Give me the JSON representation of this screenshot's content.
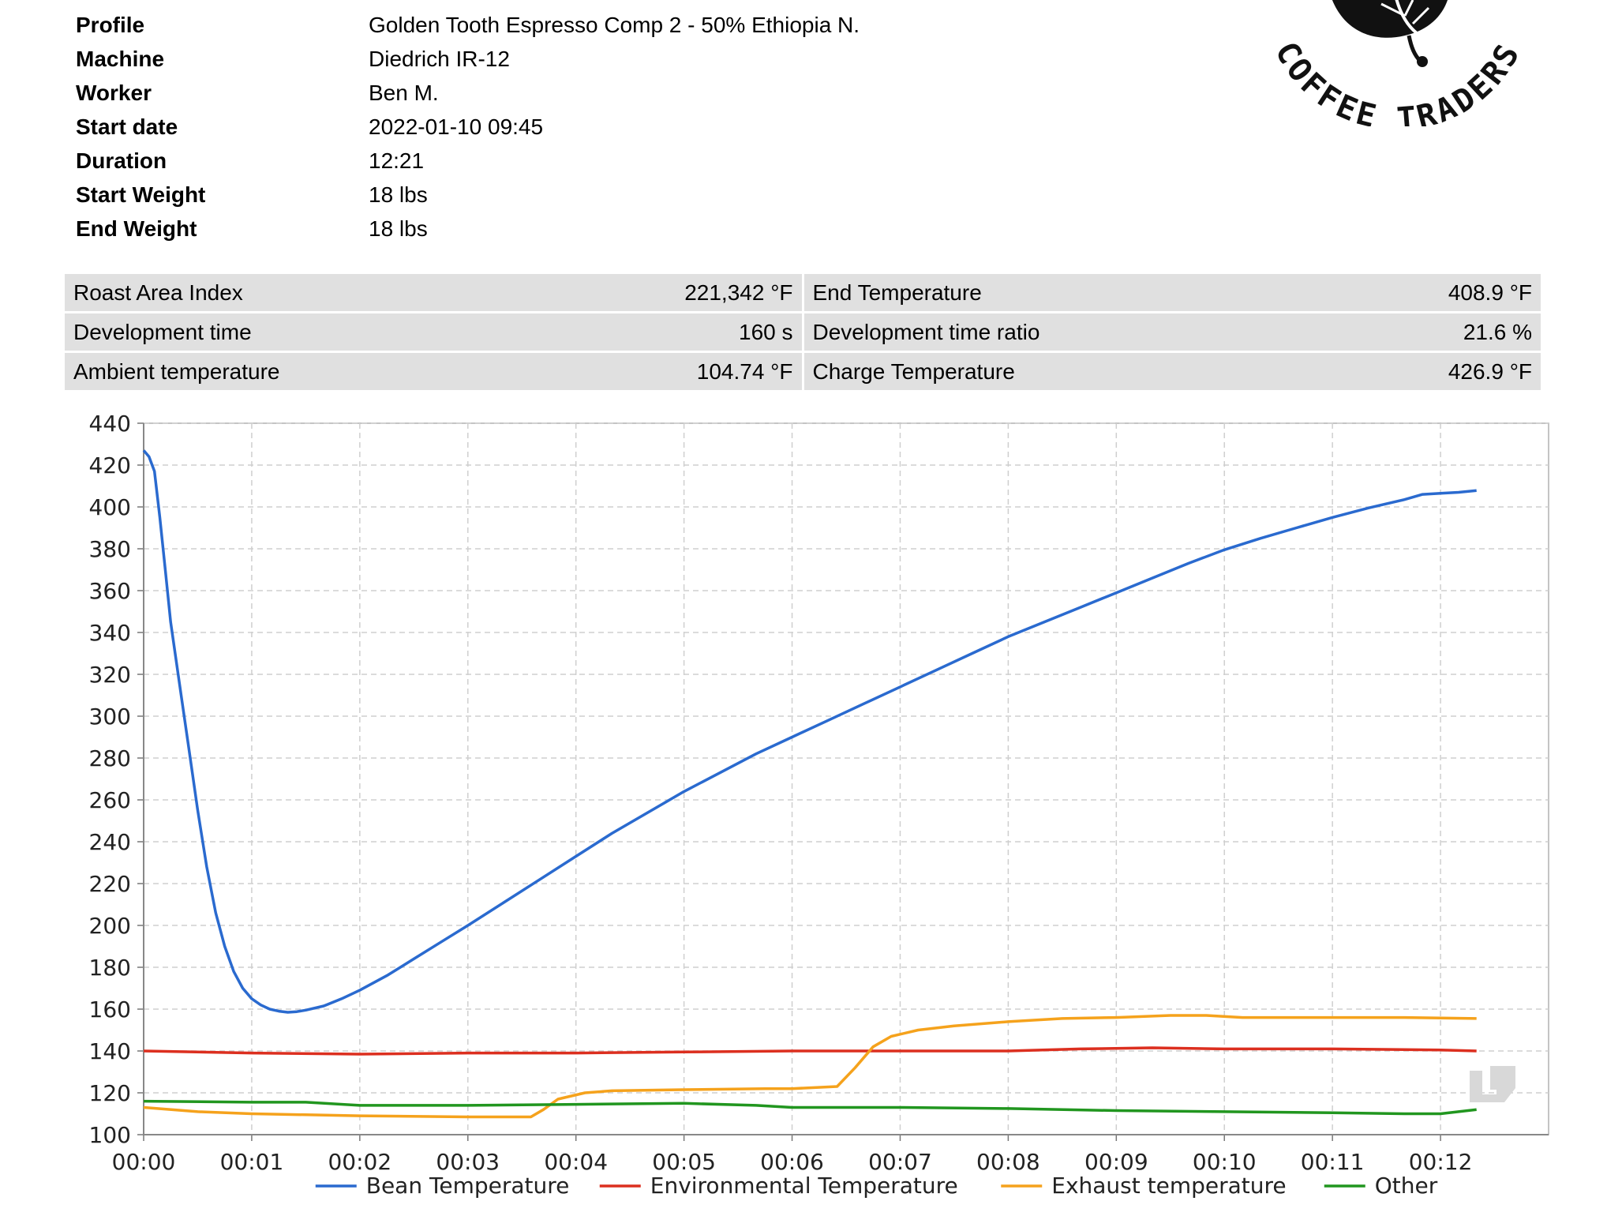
{
  "profile": {
    "rows": [
      {
        "label": "Profile",
        "value": "Golden Tooth Espresso Comp 2 - 50% Ethiopia N."
      },
      {
        "label": "Machine",
        "value": "Diedrich IR-12"
      },
      {
        "label": "Worker",
        "value": "Ben M."
      },
      {
        "label": "Start date",
        "value": "2022-01-10 09:45"
      },
      {
        "label": "Duration",
        "value": "12:21"
      },
      {
        "label": "Start Weight",
        "value": "18 lbs"
      },
      {
        "label": "End Weight",
        "value": "18 lbs"
      }
    ]
  },
  "logo": {
    "text": "COFFEE TRADERS"
  },
  "stats": {
    "rows": [
      {
        "left_label": "Roast Area Index",
        "left_value": "221,342 °F",
        "right_label": "End Temperature",
        "right_value": "408.9 °F"
      },
      {
        "left_label": "Development time",
        "left_value": "160 s",
        "right_label": "Development time ratio",
        "right_value": "21.6 %"
      },
      {
        "left_label": "Ambient temperature",
        "left_value": "104.74 °F",
        "right_label": "Charge Temperature",
        "right_value": "426.9 °F"
      }
    ]
  },
  "chart_data": {
    "type": "line",
    "title": "",
    "xlabel": "",
    "ylabel": "",
    "xlim": [
      0,
      780
    ],
    "ylim": [
      100,
      440
    ],
    "yticks": [
      100,
      120,
      140,
      160,
      180,
      200,
      220,
      240,
      260,
      280,
      300,
      320,
      340,
      360,
      380,
      400,
      420,
      440
    ],
    "xticks": [
      {
        "t": 0,
        "label": "00:00"
      },
      {
        "t": 60,
        "label": "00:01"
      },
      {
        "t": 120,
        "label": "00:02"
      },
      {
        "t": 180,
        "label": "00:03"
      },
      {
        "t": 240,
        "label": "00:04"
      },
      {
        "t": 300,
        "label": "00:05"
      },
      {
        "t": 360,
        "label": "00:06"
      },
      {
        "t": 420,
        "label": "00:07"
      },
      {
        "t": 480,
        "label": "00:08"
      },
      {
        "t": 540,
        "label": "00:09"
      },
      {
        "t": 600,
        "label": "00:10"
      },
      {
        "t": 660,
        "label": "00:11"
      },
      {
        "t": 720,
        "label": "00:12"
      }
    ],
    "grid": true,
    "legend_position": "bottom",
    "series": [
      {
        "name": "Bean Temperature",
        "color": "#2a6acf",
        "points": [
          [
            0,
            427
          ],
          [
            3,
            424
          ],
          [
            6,
            417
          ],
          [
            9,
            395
          ],
          [
            12,
            370
          ],
          [
            15,
            345
          ],
          [
            20,
            315
          ],
          [
            25,
            285
          ],
          [
            30,
            255
          ],
          [
            35,
            228
          ],
          [
            40,
            206
          ],
          [
            45,
            190
          ],
          [
            50,
            178
          ],
          [
            55,
            170
          ],
          [
            60,
            165
          ],
          [
            65,
            162
          ],
          [
            70,
            160
          ],
          [
            75,
            159
          ],
          [
            80,
            158.5
          ],
          [
            85,
            158.8
          ],
          [
            90,
            159.5
          ],
          [
            100,
            161.5
          ],
          [
            110,
            165
          ],
          [
            120,
            169
          ],
          [
            135,
            176
          ],
          [
            150,
            184
          ],
          [
            165,
            192
          ],
          [
            180,
            200
          ],
          [
            200,
            211
          ],
          [
            220,
            222
          ],
          [
            240,
            233
          ],
          [
            260,
            244
          ],
          [
            280,
            254
          ],
          [
            300,
            264
          ],
          [
            320,
            273
          ],
          [
            340,
            282
          ],
          [
            360,
            290
          ],
          [
            380,
            298
          ],
          [
            400,
            306
          ],
          [
            420,
            314
          ],
          [
            440,
            322
          ],
          [
            460,
            330
          ],
          [
            480,
            338
          ],
          [
            500,
            345
          ],
          [
            520,
            352
          ],
          [
            540,
            359
          ],
          [
            560,
            366
          ],
          [
            580,
            373
          ],
          [
            600,
            379.5
          ],
          [
            620,
            385
          ],
          [
            640,
            390
          ],
          [
            660,
            395
          ],
          [
            680,
            399.5
          ],
          [
            700,
            403.5
          ],
          [
            710,
            406
          ],
          [
            720,
            406.5
          ],
          [
            730,
            407
          ],
          [
            740,
            407.8
          ]
        ]
      },
      {
        "name": "Environmental Temperature",
        "color": "#dc2f1f",
        "points": [
          [
            0,
            140
          ],
          [
            60,
            139
          ],
          [
            120,
            138.5
          ],
          [
            180,
            139
          ],
          [
            240,
            139
          ],
          [
            300,
            139.5
          ],
          [
            360,
            140
          ],
          [
            420,
            140
          ],
          [
            480,
            140
          ],
          [
            520,
            141
          ],
          [
            560,
            141.5
          ],
          [
            600,
            141
          ],
          [
            660,
            141
          ],
          [
            720,
            140.5
          ],
          [
            740,
            140
          ]
        ]
      },
      {
        "name": "Exhaust temperature",
        "color": "#f5a21c",
        "points": [
          [
            0,
            113
          ],
          [
            30,
            111
          ],
          [
            60,
            110
          ],
          [
            120,
            109
          ],
          [
            180,
            108.5
          ],
          [
            215,
            108.5
          ],
          [
            222,
            112
          ],
          [
            230,
            117
          ],
          [
            245,
            120
          ],
          [
            260,
            121
          ],
          [
            300,
            121.5
          ],
          [
            345,
            122
          ],
          [
            360,
            122
          ],
          [
            385,
            123
          ],
          [
            395,
            132
          ],
          [
            405,
            142
          ],
          [
            415,
            147
          ],
          [
            430,
            150
          ],
          [
            450,
            152
          ],
          [
            480,
            154
          ],
          [
            510,
            155.5
          ],
          [
            540,
            156
          ],
          [
            570,
            157
          ],
          [
            590,
            157
          ],
          [
            610,
            156
          ],
          [
            650,
            156
          ],
          [
            700,
            156
          ],
          [
            740,
            155.5
          ]
        ]
      },
      {
        "name": "Other",
        "color": "#21961f",
        "points": [
          [
            0,
            116
          ],
          [
            60,
            115.5
          ],
          [
            90,
            115.5
          ],
          [
            120,
            114
          ],
          [
            180,
            114
          ],
          [
            240,
            114.5
          ],
          [
            300,
            115
          ],
          [
            340,
            114
          ],
          [
            360,
            113
          ],
          [
            420,
            113
          ],
          [
            480,
            112.5
          ],
          [
            540,
            111.5
          ],
          [
            600,
            111
          ],
          [
            660,
            110.5
          ],
          [
            700,
            110
          ],
          [
            720,
            110
          ],
          [
            740,
            112
          ]
        ]
      }
    ]
  }
}
